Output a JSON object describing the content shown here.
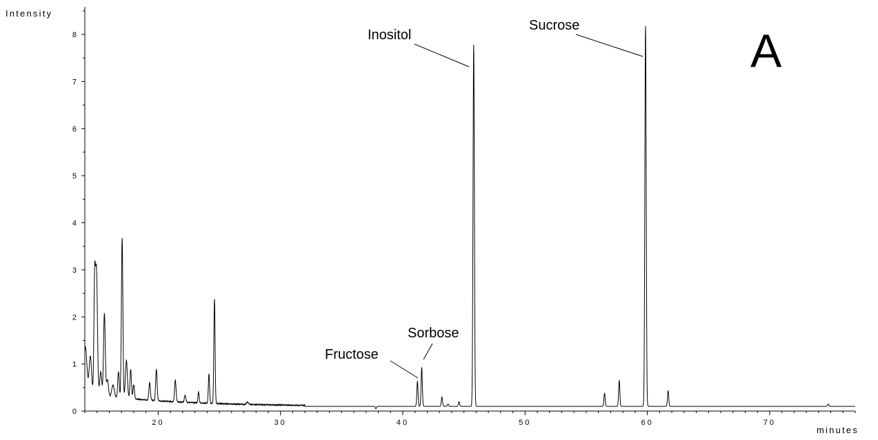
{
  "chart_data": {
    "type": "line",
    "title": "",
    "xlabel": "minutes",
    "ylabel": "Intensity",
    "panel_label": "A",
    "xlim": [
      14,
      77
    ],
    "ylim": [
      0,
      8.5
    ],
    "x_ticks": [
      20,
      30,
      40,
      50,
      60,
      70
    ],
    "x_tick_labels": [
      "20",
      "30",
      "40",
      "50",
      "60",
      "70"
    ],
    "y_ticks": [
      0,
      1,
      2,
      3,
      4,
      5,
      6,
      7,
      8
    ],
    "y_tick_labels": [
      "0",
      "1",
      "2",
      "3",
      "4",
      "5",
      "6",
      "7",
      "8"
    ],
    "grid": false,
    "baseline": 0.1,
    "peaks": [
      {
        "x": 14.05,
        "h": 1.08,
        "w": 0.12
      },
      {
        "x": 14.45,
        "h": 0.9,
        "w": 0.1
      },
      {
        "x": 14.8,
        "h": 2.35,
        "w": 0.06
      },
      {
        "x": 14.95,
        "h": 2.75,
        "w": 0.08
      },
      {
        "x": 15.3,
        "h": 0.6,
        "w": 0.08
      },
      {
        "x": 15.6,
        "h": 1.85,
        "w": 0.07
      },
      {
        "x": 15.85,
        "h": 0.45,
        "w": 0.08
      },
      {
        "x": 16.3,
        "h": 0.35,
        "w": 0.1
      },
      {
        "x": 16.75,
        "h": 0.65,
        "w": 0.06
      },
      {
        "x": 17.05,
        "h": 3.5,
        "w": 0.06
      },
      {
        "x": 17.4,
        "h": 0.9,
        "w": 0.08
      },
      {
        "x": 17.75,
        "h": 0.72,
        "w": 0.06
      },
      {
        "x": 18.0,
        "h": 0.4,
        "w": 0.06
      },
      {
        "x": 19.3,
        "h": 0.48,
        "w": 0.06
      },
      {
        "x": 19.85,
        "h": 0.76,
        "w": 0.06
      },
      {
        "x": 21.4,
        "h": 0.56,
        "w": 0.06
      },
      {
        "x": 22.2,
        "h": 0.25,
        "w": 0.06
      },
      {
        "x": 23.3,
        "h": 0.33,
        "w": 0.05
      },
      {
        "x": 24.15,
        "h": 0.72,
        "w": 0.05
      },
      {
        "x": 24.6,
        "h": 2.33,
        "w": 0.05
      },
      {
        "x": 27.3,
        "h": 0.15,
        "w": 0.08
      },
      {
        "x": 29.5,
        "h": 0.1,
        "w": 0.08
      },
      {
        "x": 33.0,
        "h": 0.1,
        "w": 0.08
      },
      {
        "x": 35.8,
        "h": 0.1,
        "w": 0.05
      },
      {
        "x": 37.8,
        "h": 0.05,
        "w": 0.05
      },
      {
        "x": 41.2,
        "h": 0.63,
        "w": 0.05
      },
      {
        "x": 41.55,
        "h": 0.93,
        "w": 0.05
      },
      {
        "x": 43.2,
        "h": 0.3,
        "w": 0.05
      },
      {
        "x": 43.7,
        "h": 0.15,
        "w": 0.05
      },
      {
        "x": 44.6,
        "h": 0.2,
        "w": 0.05
      },
      {
        "x": 45.8,
        "h": 7.78,
        "w": 0.055
      },
      {
        "x": 56.5,
        "h": 0.38,
        "w": 0.05
      },
      {
        "x": 57.7,
        "h": 0.65,
        "w": 0.05
      },
      {
        "x": 59.85,
        "h": 8.18,
        "w": 0.055
      },
      {
        "x": 61.7,
        "h": 0.43,
        "w": 0.05
      },
      {
        "x": 74.8,
        "h": 0.15,
        "w": 0.05
      }
    ],
    "annotations": [
      {
        "text": "Inositol",
        "x": 45.8
      },
      {
        "text": "Sucrose",
        "x": 59.85
      },
      {
        "text": "Sorbose",
        "x": 41.55
      },
      {
        "text": "Fructose",
        "x": 41.2
      }
    ],
    "line_color": "#000000"
  }
}
